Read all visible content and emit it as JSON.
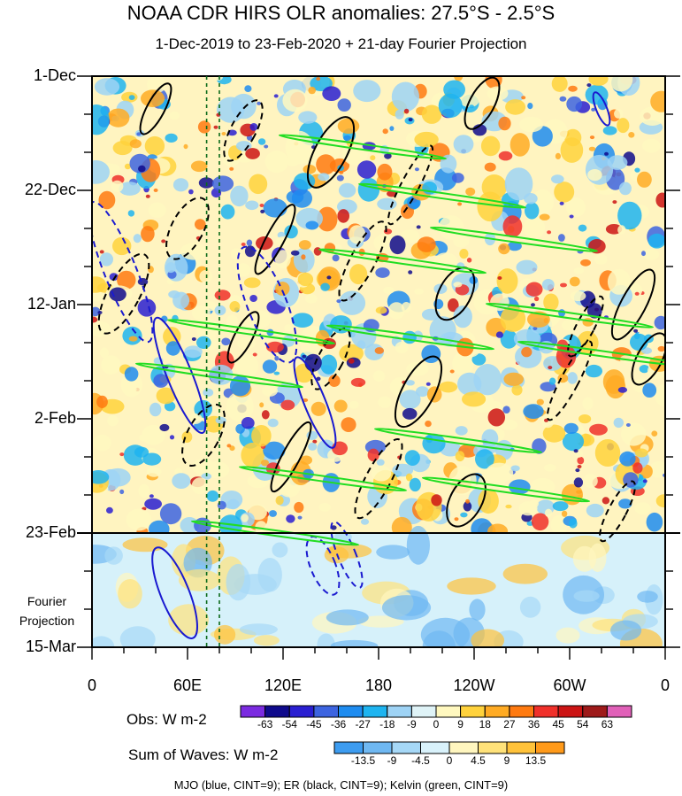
{
  "title": "NOAA CDR HIRS OLR anomalies: 27.5°S - 2.5°S",
  "subtitle": "1-Dec-2019 to 23-Feb-2020 + 21-day Fourier Projection",
  "chart_data": {
    "type": "heatmap",
    "description_axes": {
      "x_ticks": [
        "0",
        "60E",
        "120E",
        "180",
        "120W",
        "60W",
        "0"
      ],
      "x_tick_longitudes": [
        0,
        60,
        120,
        180,
        240,
        300,
        360
      ],
      "y_ticks": [
        "1-Dec",
        "22-Dec",
        "12-Jan",
        "2-Feb",
        "23-Feb",
        "15-Mar"
      ],
      "y_tick_days": [
        0,
        21,
        42,
        63,
        84,
        105
      ],
      "observation_end": "23-Feb",
      "projection_label": "Fourier Projection",
      "reference_meridians_lon": [
        72,
        80
      ]
    },
    "colorbars": [
      {
        "title": "Obs: W m-2",
        "levels": [
          "-63",
          "-54",
          "-45",
          "-36",
          "-27",
          "-18",
          "-9",
          "0",
          "9",
          "18",
          "27",
          "36",
          "45",
          "54",
          "63"
        ],
        "colors": [
          "#7b2be0",
          "#0f0a8c",
          "#2a1fd1",
          "#3d64e0",
          "#1e8cf0",
          "#1eb4f0",
          "#9ed3f5",
          "#dff3f7",
          "#fff8bf",
          "#ffd23c",
          "#ffab24",
          "#ff7a10",
          "#f0302a",
          "#cc1414",
          "#9e1a1a",
          "#e060b8"
        ]
      },
      {
        "title": "Sum of Waves: W m-2",
        "levels": [
          "-13.5",
          "-9",
          "-4.5",
          "0",
          "4.5",
          "9",
          "13.5"
        ],
        "colors": [
          "#3d9cf0",
          "#6fb8f2",
          "#a6d8f7",
          "#d9f2fb",
          "#fff6bf",
          "#ffe27a",
          "#ffc23a",
          "#ff9a1a"
        ]
      }
    ],
    "wave_legend": "MJO (blue, CINT=9); ER (black, CINT=9); Kelvin (green, CINT=9)",
    "wave_colors": {
      "MJO": "#1a1ad0",
      "ER": "#000000",
      "Kelvin": "#22dd22"
    }
  }
}
